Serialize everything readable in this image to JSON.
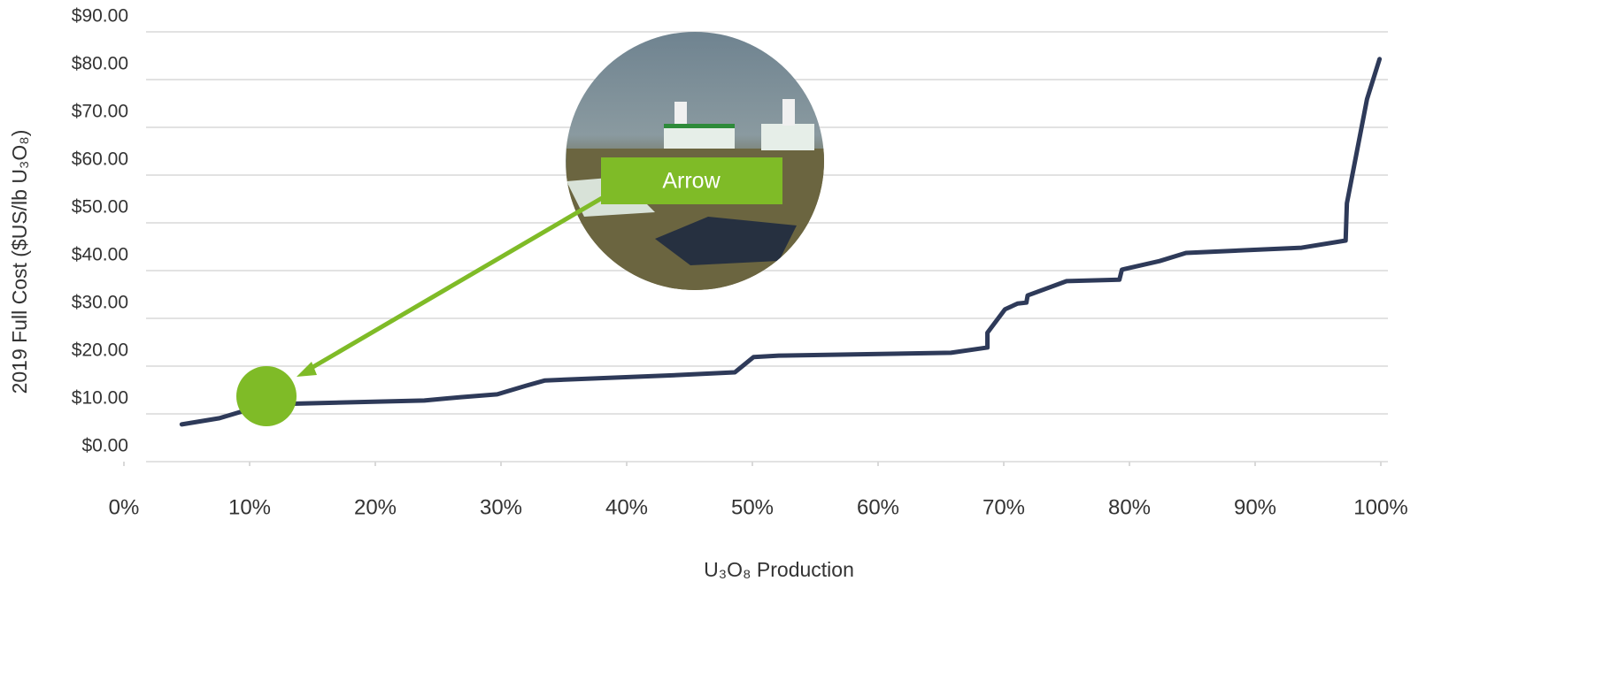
{
  "chart_data": {
    "type": "line",
    "y_label": "2019 Full Cost ($US/lb U₃O₈)",
    "x_label": "U₃O₈ Production",
    "annotation": "Arrow",
    "x": [
      4.6,
      7.6,
      11.3,
      23.9,
      26.8,
      29.7,
      32.0,
      33.5,
      43.0,
      48.6,
      50.1,
      52.1,
      65.8,
      68.7,
      68.7,
      70.1,
      71.1,
      71.8,
      71.9,
      75.0,
      79.2,
      79.4,
      82.4,
      84.5,
      93.7,
      97.2,
      97.3,
      98.9,
      99.9
    ],
    "series": [
      {
        "color": "#2e3a59",
        "values": [
          7.8,
          9.1,
          12.0,
          12.8,
          13.5,
          14.1,
          15.9,
          17.0,
          18.0,
          18.7,
          21.9,
          22.2,
          22.8,
          23.9,
          27.0,
          31.9,
          33.1,
          33.3,
          34.8,
          37.8,
          38.1,
          40.2,
          42.0,
          43.7,
          44.8,
          46.3,
          54.1,
          75.9,
          84.3
        ]
      }
    ],
    "xlim": [
      0,
      100
    ],
    "xticks": [
      {
        "value": 0,
        "label": "0%"
      },
      {
        "value": 10,
        "label": "10%"
      },
      {
        "value": 20,
        "label": "20%"
      },
      {
        "value": 30,
        "label": "30%"
      },
      {
        "value": 40,
        "label": "40%"
      },
      {
        "value": 50,
        "label": "50%"
      },
      {
        "value": 60,
        "label": "60%"
      },
      {
        "value": 70,
        "label": "70%"
      },
      {
        "value": 80,
        "label": "80%"
      },
      {
        "value": 90,
        "label": "90%"
      },
      {
        "value": 100,
        "label": "100%"
      }
    ],
    "ylim": [
      0,
      90
    ],
    "yticks": [
      {
        "value": 0,
        "label": "$0.00"
      },
      {
        "value": 10,
        "label": "$10.00"
      },
      {
        "value": 20,
        "label": "$20.00"
      },
      {
        "value": 30,
        "label": "$30.00"
      },
      {
        "value": 40,
        "label": "$40.00"
      },
      {
        "value": 50,
        "label": "$50.00"
      },
      {
        "value": 60,
        "label": "$60.00"
      },
      {
        "value": 70,
        "label": "$70.00"
      },
      {
        "value": 80,
        "label": "$80.00"
      },
      {
        "value": 90,
        "label": "$90.00"
      }
    ],
    "grid": true
  }
}
